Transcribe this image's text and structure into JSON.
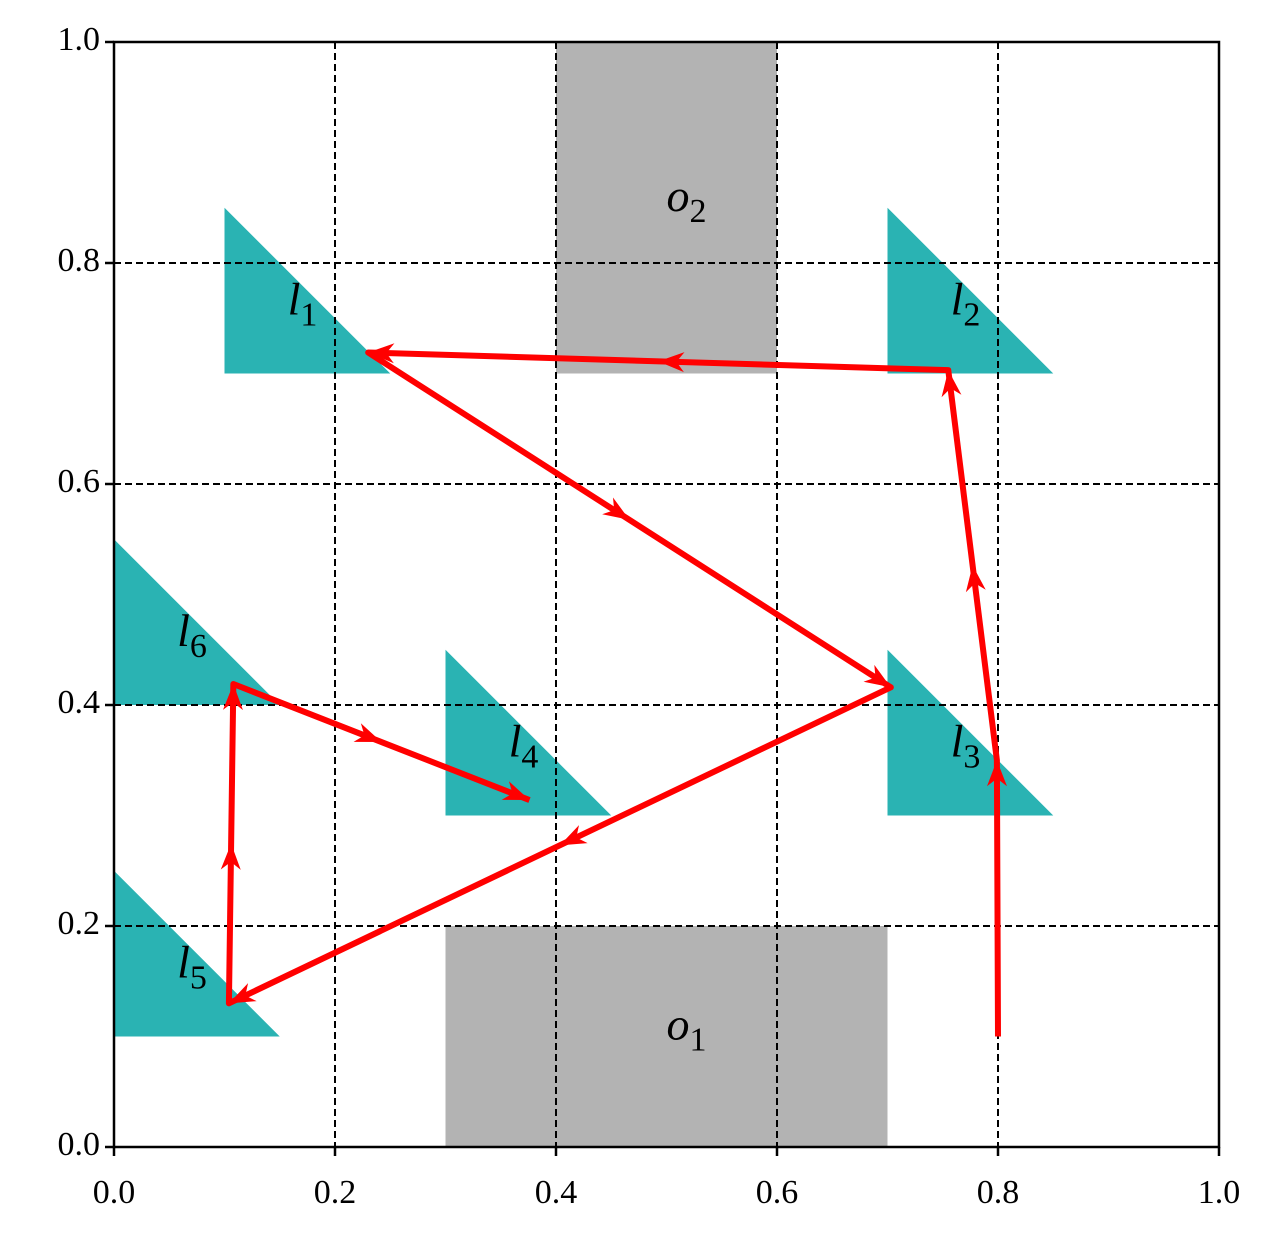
{
  "chart_data": {
    "type": "trajectory",
    "xlim": [
      0,
      1
    ],
    "ylim": [
      0,
      1
    ],
    "xticks": [
      {
        "value": 0,
        "label": "0.0"
      },
      0.2,
      0.4,
      0.6,
      0.8,
      {
        "value": 1,
        "label": "1.0"
      }
    ],
    "yticks": [
      {
        "value": 0,
        "label": "0.0"
      },
      0.2,
      0.4,
      0.6,
      0.8,
      {
        "value": 1,
        "label": "1.0"
      }
    ],
    "grid": true,
    "obstacles": {
      "color": "#b3b3b3",
      "items": [
        {
          "base": "o",
          "sub": "1",
          "x": [
            0.3,
            0.7
          ],
          "y": [
            0,
            0.2
          ]
        },
        {
          "base": "o",
          "sub": "2",
          "x": [
            0.4,
            0.6
          ],
          "y": [
            0.7,
            1
          ]
        }
      ]
    },
    "landmarks": {
      "color": "#2ab3b3",
      "items": [
        {
          "base": "l",
          "sub": "1",
          "x": [
            0.1,
            0.25
          ],
          "y": [
            0.7,
            0.85
          ]
        },
        {
          "base": "l",
          "sub": "2",
          "x": [
            0.7,
            0.85
          ],
          "y": [
            0.7,
            0.85
          ]
        },
        {
          "base": "l",
          "sub": "3",
          "x": [
            0.7,
            0.85
          ],
          "y": [
            0.3,
            0.45
          ]
        },
        {
          "base": "l",
          "sub": "4",
          "x": [
            0.3,
            0.45
          ],
          "y": [
            0.3,
            0.45
          ]
        },
        {
          "base": "l",
          "sub": "5",
          "x": [
            0,
            0.15
          ],
          "y": [
            0.1,
            0.25
          ]
        },
        {
          "base": "l",
          "sub": "6",
          "x": [
            0,
            0.15
          ],
          "y": [
            0.4,
            0.55
          ]
        }
      ]
    },
    "series": [
      {
        "color": "#ff0000",
        "x": [
          0.8,
          0.799,
          0.755,
          0.23,
          0.703,
          0.104,
          0.108,
          0.376
        ],
        "values": [
          0.1,
          0.35,
          0.703,
          0.719,
          0.416,
          0.13,
          0.419,
          0.314
        ]
      }
    ]
  }
}
